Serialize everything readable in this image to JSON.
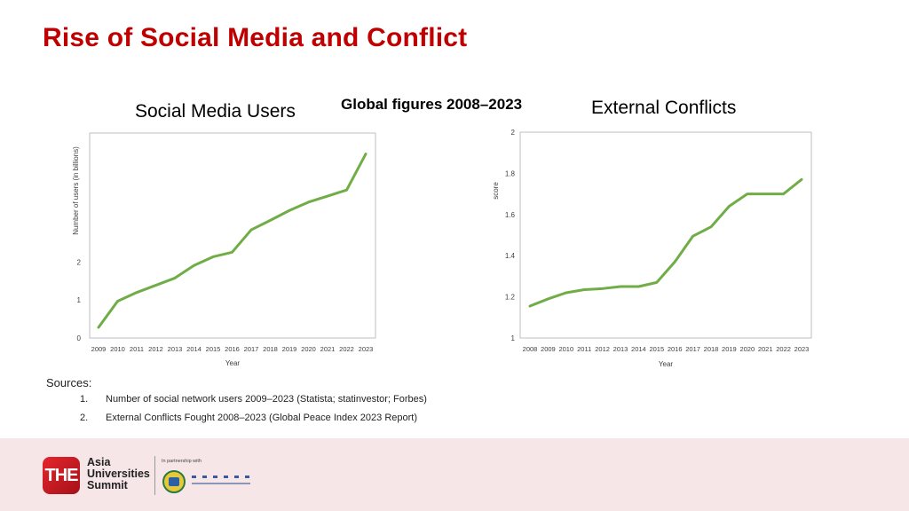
{
  "slide": {
    "title": "Rise of Social Media and Conflict",
    "subtitle": "Global figures 2008–2023"
  },
  "chart_data": [
    {
      "type": "line",
      "title": "Social Media Users",
      "xlabel": "Year",
      "ylabel": "Number of users (in billions)",
      "x": [
        "2009",
        "2010",
        "2011",
        "2012",
        "2013",
        "2014",
        "2015",
        "2016",
        "2017",
        "2018",
        "2019",
        "2020",
        "2021",
        "2022",
        "2023"
      ],
      "series": [
        {
          "name": "Social media users",
          "color": "#70ad47",
          "values": [
            0.28,
            0.97,
            1.2,
            1.39,
            1.58,
            1.91,
            2.14,
            2.26,
            2.85,
            3.1,
            3.36,
            3.58,
            3.74,
            3.9,
            4.85
          ]
        }
      ],
      "yticks": [
        "0",
        "1",
        "2"
      ],
      "ytick_values": [
        0,
        1,
        2
      ],
      "ylim": [
        0,
        5.4
      ],
      "grid": false,
      "legend": "none"
    },
    {
      "type": "line",
      "title": "External Conflicts",
      "xlabel": "Year",
      "ylabel": "score",
      "x": [
        "2008",
        "2009",
        "2010",
        "2011",
        "2012",
        "2013",
        "2014",
        "2015",
        "2016",
        "2017",
        "2018",
        "2019",
        "2020",
        "2021",
        "2022",
        "2023"
      ],
      "series": [
        {
          "name": "External conflicts score",
          "color": "#70ad47",
          "values": [
            1.155,
            1.19,
            1.22,
            1.235,
            1.24,
            1.25,
            1.25,
            1.27,
            1.37,
            1.495,
            1.54,
            1.64,
            1.7,
            1.7,
            1.7,
            1.77
          ]
        }
      ],
      "yticks": [
        "1",
        "1.2",
        "1.4",
        "1.6",
        "1.8",
        "2"
      ],
      "ytick_values": [
        1,
        1.2,
        1.4,
        1.6,
        1.8,
        2
      ],
      "ylim": [
        1,
        2
      ],
      "grid": false,
      "legend": "none"
    }
  ],
  "sources": {
    "heading": "Sources:",
    "items": [
      {
        "num": "1.",
        "text": "Number of social network users 2009–2023 (Statista; statinvestor; Forbes)"
      },
      {
        "num": "2.",
        "text": "External Conflicts Fought 2008–2023 (Global Peace Index 2023 Report)"
      }
    ]
  },
  "footer": {
    "logo_text": "THE",
    "summit_lines": [
      "Asia",
      "Universities",
      "Summit"
    ],
    "partner_label": "In partnership with"
  }
}
